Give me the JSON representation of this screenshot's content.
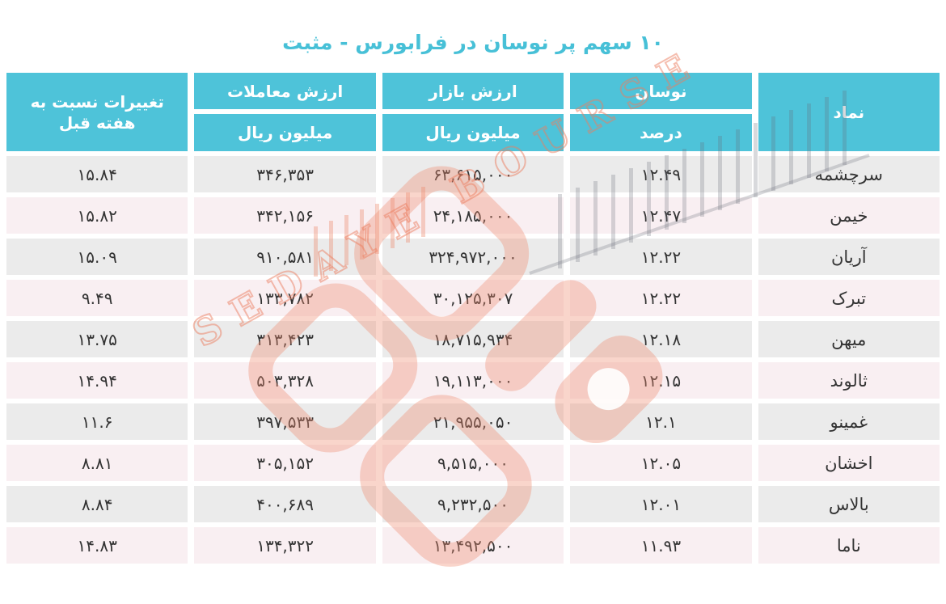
{
  "title": "۱۰ سهم پر نوسان در فرابورس - مثبت",
  "colors": {
    "header_teal": "#4EC3D9",
    "title_teal": "#47C0D7",
    "row_gray": "#EBEBEB",
    "row_pink": "#F9EFF2",
    "text_dark": "#333333",
    "watermark_salmon": "#ED8B6F"
  },
  "table": {
    "header_symbol": "نماد",
    "header_change": "تغییرات نسبت به هفته قبل",
    "groups": [
      {
        "label": "نوسان",
        "unit": "درصد"
      },
      {
        "label": "ارزش بازار",
        "unit": "میلیون ریال"
      },
      {
        "label": "ارزش معاملات",
        "unit": "میلیون ریال"
      }
    ],
    "rows": [
      {
        "symbol": "سرچشمه",
        "volatility": "۱۲.۴۹",
        "market_value": "۶۳,۶۱۵,۰۰۰",
        "trade_value": "۳۴۶,۳۵۳",
        "change": "۱۵.۸۴"
      },
      {
        "symbol": "خیمن",
        "volatility": "۱۲.۴۷",
        "market_value": "۲۴,۱۸۵,۰۰۰",
        "trade_value": "۳۴۲,۱۵۶",
        "change": "۱۵.۸۲"
      },
      {
        "symbol": "آریان",
        "volatility": "۱۲.۲۲",
        "market_value": "۳۲۴,۹۷۲,۰۰۰",
        "trade_value": "۹۱۰,۵۸۱",
        "change": "۱۵.۰۹"
      },
      {
        "symbol": "تبرک",
        "volatility": "۱۲.۲۲",
        "market_value": "۳۰,۱۲۵,۳۰۷",
        "trade_value": "۱۳۳,۷۸۲",
        "change": "۹.۴۹"
      },
      {
        "symbol": "میهن",
        "volatility": "۱۲.۱۸",
        "market_value": "۱۸,۷۱۵,۹۳۴",
        "trade_value": "۳۱۳,۴۲۳",
        "change": "۱۳.۷۵"
      },
      {
        "symbol": "ثالوند",
        "volatility": "۱۲.۱۵",
        "market_value": "۱۹,۱۱۳,۰۰۰",
        "trade_value": "۵۰۳,۳۲۸",
        "change": "۱۴.۹۴"
      },
      {
        "symbol": "غمینو",
        "volatility": "۱۲.۱",
        "market_value": "۲۱,۹۵۵,۰۵۰",
        "trade_value": "۳۹۷,۵۳۳",
        "change": "۱۱.۶"
      },
      {
        "symbol": "اخشان",
        "volatility": "۱۲.۰۵",
        "market_value": "۹,۵۱۵,۰۰۰",
        "trade_value": "۳۰۵,۱۵۲",
        "change": "۸.۸۱"
      },
      {
        "symbol": "بالاس",
        "volatility": "۱۲.۰۱",
        "market_value": "۹,۲۳۲,۵۰۰",
        "trade_value": "۴۰۰,۶۸۹",
        "change": "۸.۸۴"
      },
      {
        "symbol": "ناما",
        "volatility": "۱۱.۹۳",
        "market_value": "۱۳,۴۹۲,۵۰۰",
        "trade_value": "۱۳۴,۳۲۲",
        "change": "۱۴.۸۳"
      }
    ]
  },
  "watermark": {
    "text": "SEDAYE BOURSE"
  },
  "chart_data": {
    "type": "table",
    "title": "۱۰ سهم پر نوسان در فرابورس - مثبت",
    "columns": [
      "نماد",
      "نوسان (درصد)",
      "ارزش بازار (میلیون ریال)",
      "ارزش معاملات (میلیون ریال)",
      "تغییرات نسبت به هفته قبل"
    ],
    "rows": [
      [
        "سرچشمه",
        12.49,
        63615000,
        346353,
        15.84
      ],
      [
        "خیمن",
        12.47,
        24185000,
        342156,
        15.82
      ],
      [
        "آریان",
        12.22,
        324972000,
        910581,
        15.09
      ],
      [
        "تبرک",
        12.22,
        30125307,
        133782,
        9.49
      ],
      [
        "میهن",
        12.18,
        18715934,
        313423,
        13.75
      ],
      [
        "ثالوند",
        12.15,
        19113000,
        503328,
        14.94
      ],
      [
        "غمینو",
        12.1,
        21955050,
        397533,
        11.6
      ],
      [
        "اخشان",
        12.05,
        9515000,
        305152,
        8.81
      ],
      [
        "بالاس",
        12.01,
        9232500,
        400689,
        8.84
      ],
      [
        "ناما",
        11.93,
        13492500,
        134322,
        14.83
      ]
    ]
  }
}
